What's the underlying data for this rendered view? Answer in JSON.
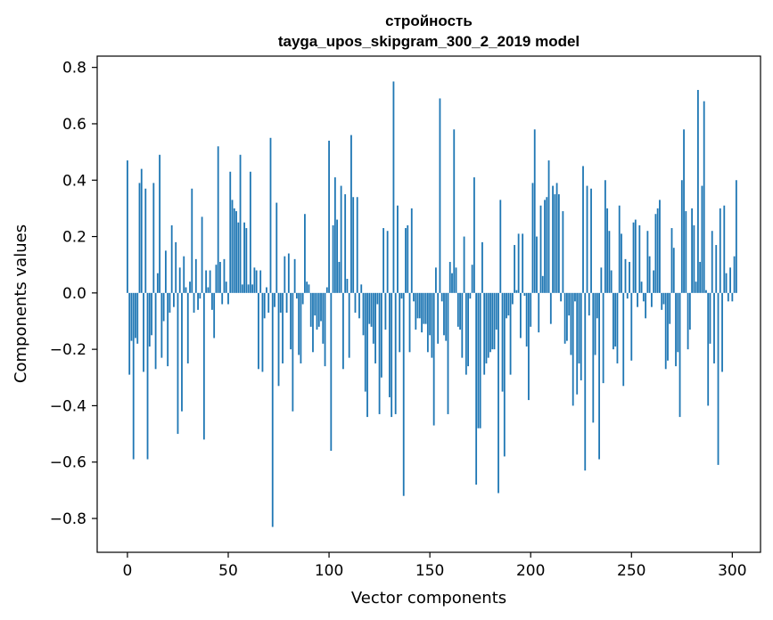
{
  "chart_data": {
    "type": "bar",
    "title": "стройность",
    "subtitle": "tayga_upos_skipgram_300_2_2019 model",
    "xlabel": "Vector components",
    "ylabel": "Components values",
    "xlim": [
      -15,
      314
    ],
    "ylim": [
      -0.92,
      0.84
    ],
    "xticks": [
      0,
      50,
      100,
      150,
      200,
      250,
      300
    ],
    "yticks": [
      -0.8,
      -0.6,
      -0.4,
      -0.2,
      0.0,
      0.2,
      0.4,
      0.6,
      0.8
    ],
    "grid": false,
    "bar_color": "#1f77b4",
    "values": [
      0.47,
      -0.29,
      -0.17,
      -0.59,
      -0.16,
      -0.18,
      0.39,
      0.44,
      -0.28,
      0.37,
      -0.59,
      -0.19,
      -0.15,
      0.39,
      -0.27,
      0.07,
      0.49,
      -0.23,
      -0.1,
      0.15,
      -0.26,
      -0.07,
      0.24,
      -0.05,
      0.18,
      -0.5,
      0.09,
      -0.42,
      0.13,
      0.02,
      -0.25,
      0.04,
      0.37,
      -0.07,
      0.12,
      -0.06,
      -0.02,
      0.27,
      -0.52,
      0.08,
      0.02,
      0.08,
      -0.06,
      -0.16,
      0.1,
      0.52,
      0.11,
      -0.04,
      0.12,
      0.04,
      -0.04,
      0.43,
      0.33,
      0.3,
      0.29,
      0.25,
      0.49,
      0.03,
      0.25,
      0.23,
      0.03,
      0.43,
      0.03,
      0.09,
      0.08,
      -0.27,
      0.08,
      -0.28,
      -0.09,
      0.02,
      -0.07,
      0.55,
      -0.83,
      -0.05,
      0.32,
      -0.33,
      -0.07,
      -0.25,
      0.13,
      -0.07,
      0.14,
      -0.2,
      -0.42,
      0.12,
      -0.02,
      -0.22,
      -0.25,
      -0.04,
      0.28,
      0.04,
      0.03,
      -0.12,
      -0.21,
      -0.08,
      -0.13,
      -0.12,
      -0.1,
      -0.18,
      -0.26,
      0.02,
      0.54,
      -0.56,
      0.24,
      0.41,
      0.26,
      0.11,
      0.38,
      -0.27,
      0.35,
      0.05,
      -0.23,
      0.56,
      0.34,
      -0.07,
      0.34,
      -0.09,
      0.03,
      -0.15,
      -0.35,
      -0.44,
      -0.11,
      -0.12,
      -0.18,
      -0.25,
      -0.04,
      -0.43,
      -0.3,
      0.23,
      -0.13,
      0.22,
      -0.37,
      -0.44,
      0.75,
      -0.43,
      0.31,
      -0.21,
      -0.02,
      -0.72,
      0.23,
      0.24,
      -0.21,
      0.3,
      -0.03,
      -0.13,
      -0.09,
      -0.09,
      -0.14,
      -0.11,
      -0.11,
      -0.21,
      -0.15,
      -0.23,
      -0.47,
      0.09,
      -0.18,
      0.69,
      -0.03,
      -0.15,
      -0.17,
      -0.43,
      0.11,
      0.07,
      0.58,
      0.09,
      -0.12,
      -0.13,
      -0.23,
      0.2,
      -0.29,
      -0.26,
      -0.02,
      0.1,
      0.41,
      -0.68,
      -0.48,
      -0.48,
      0.18,
      -0.29,
      -0.25,
      -0.23,
      -0.21,
      -0.2,
      -0.2,
      -0.13,
      -0.71,
      0.33,
      -0.35,
      -0.58,
      -0.09,
      -0.08,
      -0.29,
      -0.04,
      0.17,
      0.01,
      0.21,
      -0.16,
      0.21,
      -0.01,
      -0.19,
      -0.38,
      -0.12,
      0.39,
      0.58,
      0.2,
      -0.14,
      0.31,
      0.06,
      0.33,
      0.34,
      0.47,
      -0.11,
      0.38,
      0.35,
      0.39,
      0.35,
      -0.03,
      0.29,
      -0.18,
      -0.17,
      -0.08,
      -0.22,
      -0.4,
      -0.03,
      -0.36,
      -0.25,
      -0.31,
      0.45,
      -0.63,
      0.38,
      -0.08,
      0.37,
      -0.46,
      -0.22,
      -0.09,
      -0.59,
      0.09,
      -0.32,
      0.4,
      0.3,
      0.22,
      0.08,
      -0.2,
      -0.19,
      -0.25,
      0.31,
      0.21,
      -0.33,
      0.12,
      -0.02,
      0.11,
      -0.24,
      0.25,
      0.26,
      -0.05,
      0.24,
      0.04,
      -0.03,
      -0.09,
      0.22,
      0.13,
      -0.05,
      0.08,
      0.28,
      0.3,
      0.33,
      -0.06,
      -0.04,
      -0.27,
      -0.24,
      -0.11,
      0.23,
      0.16,
      -0.26,
      -0.21,
      -0.44,
      0.4,
      0.58,
      0.29,
      -0.2,
      -0.13,
      0.3,
      0.24,
      0.04,
      0.72,
      0.11,
      0.38,
      0.68,
      0.01,
      -0.4,
      -0.18,
      0.22,
      -0.25,
      0.17,
      -0.61,
      0.3,
      -0.28,
      0.31,
      0.07,
      -0.03,
      0.09,
      -0.03,
      0.13,
      0.4
    ]
  }
}
